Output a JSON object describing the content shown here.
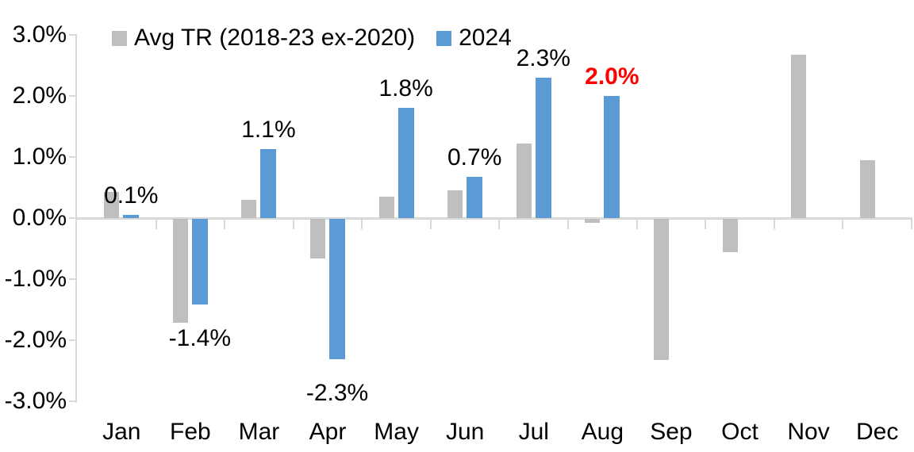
{
  "chart_data": {
    "type": "bar",
    "title": "",
    "xlabel": "",
    "ylabel": "",
    "categories": [
      "Jan",
      "Feb",
      "Mar",
      "Apr",
      "May",
      "Jun",
      "Jul",
      "Aug",
      "Sep",
      "Oct",
      "Nov",
      "Dec"
    ],
    "series": [
      {
        "name": "Avg TR (2018-23 ex-2020)",
        "color": "#BFBFBF",
        "values": [
          0.43,
          -1.7,
          0.3,
          -0.65,
          0.35,
          0.45,
          1.22,
          -0.07,
          -2.31,
          -0.55,
          2.68,
          0.95
        ]
      },
      {
        "name": "2024",
        "color": "#5B9BD5",
        "values": [
          0.05,
          -1.4,
          1.13,
          -2.3,
          1.8,
          0.68,
          2.3,
          2.0,
          null,
          null,
          null,
          null
        ]
      }
    ],
    "data_labels": [
      {
        "index": 0,
        "text": "0.1%",
        "color": "#000000",
        "bold": false
      },
      {
        "index": 1,
        "text": "-1.4%",
        "color": "#000000",
        "bold": false
      },
      {
        "index": 2,
        "text": "1.1%",
        "color": "#000000",
        "bold": false
      },
      {
        "index": 3,
        "text": "-2.3%",
        "color": "#000000",
        "bold": false
      },
      {
        "index": 4,
        "text": "1.8%",
        "color": "#000000",
        "bold": false
      },
      {
        "index": 5,
        "text": "0.7%",
        "color": "#000000",
        "bold": false
      },
      {
        "index": 6,
        "text": "2.3%",
        "color": "#000000",
        "bold": false
      },
      {
        "index": 7,
        "text": "2.0%",
        "color": "#FF0000",
        "bold": true
      }
    ],
    "yticks": [
      "3.0%",
      "2.0%",
      "1.0%",
      "0.0%",
      "-1.0%",
      "-2.0%",
      "-3.0%"
    ],
    "ytick_values": [
      3,
      2,
      1,
      0,
      -1,
      -2,
      -3
    ],
    "ylim": [
      -3,
      3
    ],
    "grid": false,
    "legend_position": "top",
    "axis_color": "#D9D9D9",
    "text_color": "#000000",
    "highlight_color": "#FF0000"
  }
}
